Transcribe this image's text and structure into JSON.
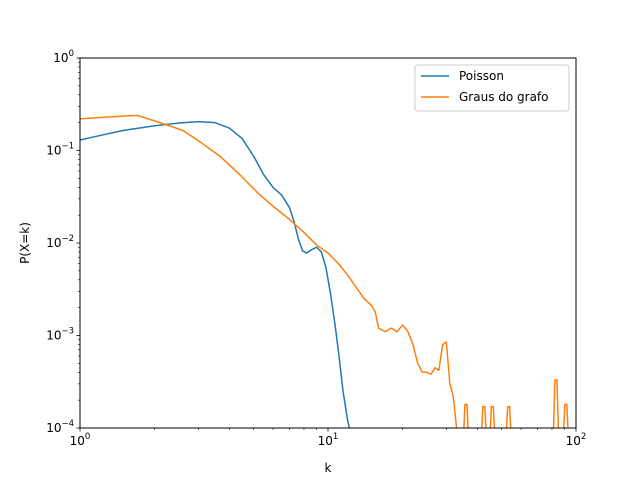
{
  "chart_data": {
    "type": "line",
    "title": "",
    "xlabel": "k",
    "ylabel": "P(X=k)",
    "xscale": "log",
    "yscale": "log",
    "xlim": [
      1,
      100
    ],
    "ylim": [
      0.0001,
      1
    ],
    "grid": false,
    "legend_position": "top-right",
    "x_ticks": [
      {
        "value": 1,
        "base": "10",
        "exp": "0"
      },
      {
        "value": 10,
        "base": "10",
        "exp": "1"
      },
      {
        "value": 100,
        "base": "10",
        "exp": "2"
      }
    ],
    "y_ticks": [
      {
        "value": 0.0001,
        "base": "10",
        "exp": "−4"
      },
      {
        "value": 0.001,
        "base": "10",
        "exp": "−3"
      },
      {
        "value": 0.01,
        "base": "10",
        "exp": "−2"
      },
      {
        "value": 0.1,
        "base": "10",
        "exp": "−1"
      },
      {
        "value": 1,
        "base": "10",
        "exp": "0"
      }
    ],
    "series": [
      {
        "name": "Poisson",
        "color": "#1f77b4",
        "x": [
          1,
          1.2,
          1.5,
          2,
          2.5,
          3,
          3.5,
          4,
          4.5,
          5,
          5.5,
          6,
          6.5,
          7,
          7.3,
          7.6,
          7.9,
          8.2,
          8.6,
          9,
          9.4,
          9.8,
          10.2,
          10.6,
          11,
          11.5,
          12,
          12.2
        ],
        "y": [
          0.13,
          0.145,
          0.165,
          0.185,
          0.198,
          0.205,
          0.2,
          0.175,
          0.135,
          0.088,
          0.055,
          0.04,
          0.033,
          0.024,
          0.017,
          0.011,
          0.0082,
          0.0078,
          0.0085,
          0.009,
          0.008,
          0.0055,
          0.003,
          0.0015,
          0.0007,
          0.00025,
          0.00012,
          0.0001
        ]
      },
      {
        "name": "Graus do grafo",
        "color": "#ff7f0e",
        "x": [
          1,
          1.3,
          1.7,
          2.1,
          2.6,
          3.1,
          3.7,
          4.4,
          5.2,
          6,
          7,
          8,
          9,
          10,
          11,
          12,
          13,
          14,
          15,
          15.5,
          16,
          17,
          18,
          19,
          20,
          21,
          22,
          23,
          24,
          25,
          26,
          27,
          28,
          29,
          30,
          31,
          32,
          33
        ],
        "y": [
          0.22,
          0.23,
          0.24,
          0.2,
          0.165,
          0.12,
          0.085,
          0.055,
          0.035,
          0.025,
          0.018,
          0.013,
          0.0095,
          0.0078,
          0.006,
          0.0045,
          0.0033,
          0.0025,
          0.0021,
          0.0018,
          0.0012,
          0.0011,
          0.0012,
          0.0011,
          0.0013,
          0.0011,
          0.0008,
          0.0005,
          0.0004,
          0.0004,
          0.00038,
          0.00045,
          0.00042,
          0.0008,
          0.00085,
          0.0003,
          0.00022,
          0.0001
        ]
      }
    ],
    "spikes": [
      {
        "series": "Graus do grafo",
        "x": 36,
        "y": 0.00018
      },
      {
        "series": "Graus do grafo",
        "x": 42.5,
        "y": 0.00017
      },
      {
        "series": "Graus do grafo",
        "x": 46,
        "y": 0.00017
      },
      {
        "series": "Graus do grafo",
        "x": 53.5,
        "y": 0.00017
      },
      {
        "series": "Graus do grafo",
        "x": 83,
        "y": 0.00033
      },
      {
        "series": "Graus do grafo",
        "x": 91,
        "y": 0.00018
      }
    ]
  }
}
